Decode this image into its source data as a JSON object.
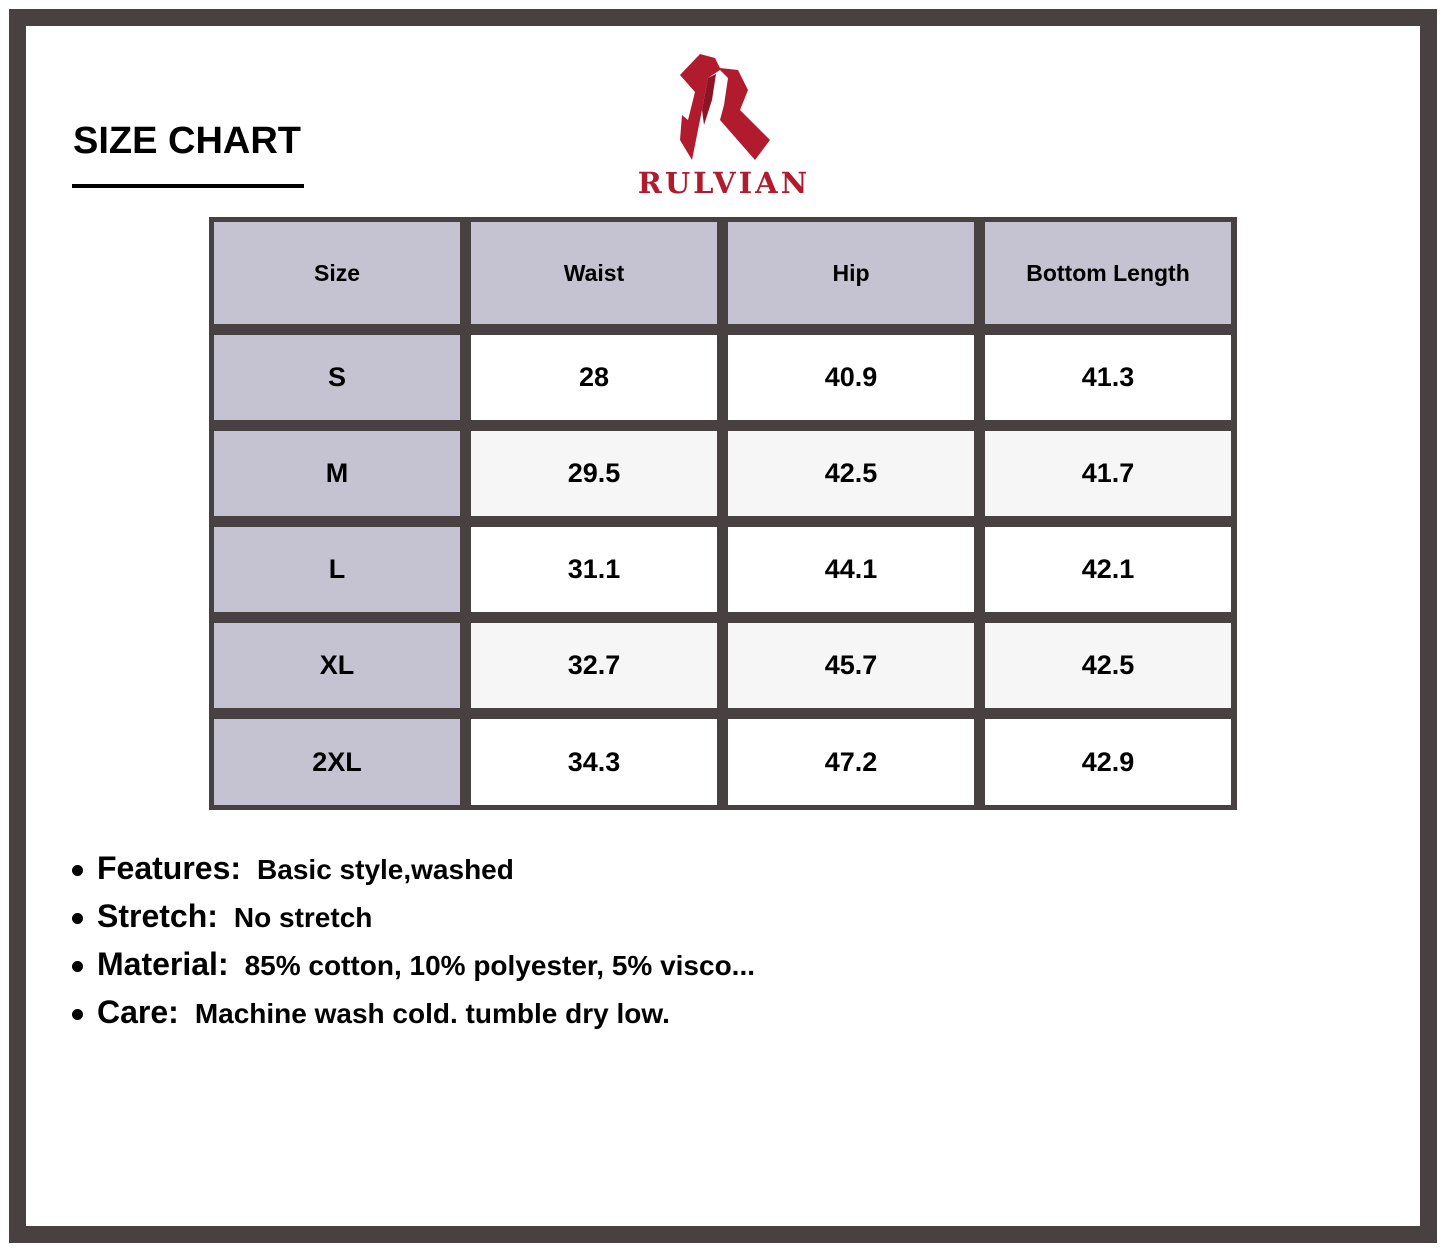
{
  "title": "SIZE CHART",
  "brand": {
    "name": "RULVIAN",
    "color": "#b01c2e"
  },
  "table": {
    "headers": [
      "Size",
      "Waist",
      "Hip",
      "Bottom Length"
    ],
    "rows": [
      [
        "S",
        "28",
        "40.9",
        "41.3"
      ],
      [
        "M",
        "29.5",
        "42.5",
        "41.7"
      ],
      [
        "L",
        "31.1",
        "44.1",
        "42.1"
      ],
      [
        "XL",
        "32.7",
        "45.7",
        "42.5"
      ],
      [
        "2XL",
        "34.3",
        "47.2",
        "42.9"
      ]
    ]
  },
  "details": [
    {
      "label": "Features:",
      "value": "Basic style,washed"
    },
    {
      "label": "Stretch:",
      "value": "No stretch"
    },
    {
      "label": "Material:",
      "value": "85% cotton, 10% polyester, 5% visco..."
    },
    {
      "label": "Care:",
      "value": "Machine wash cold. tumble dry low."
    }
  ]
}
